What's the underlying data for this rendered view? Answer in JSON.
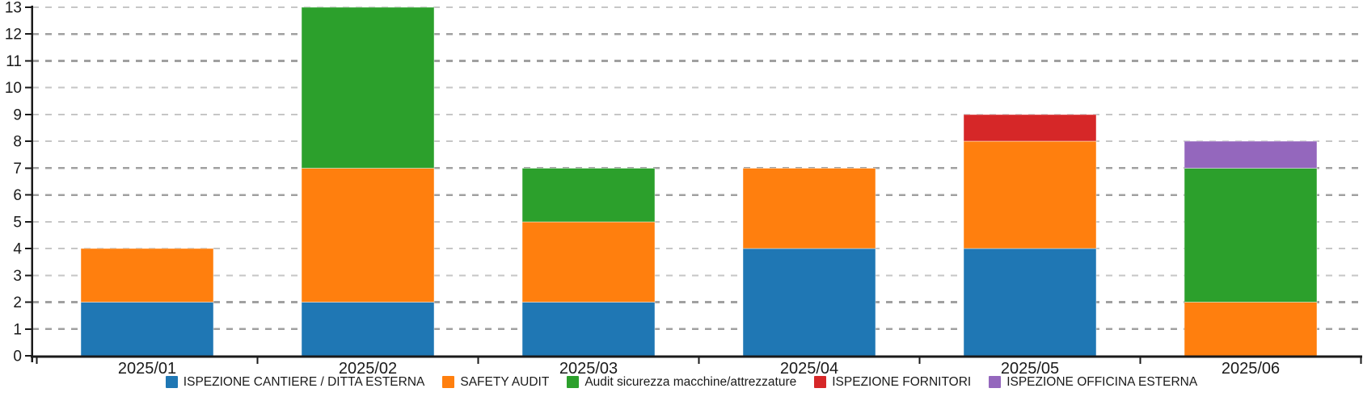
{
  "chart_data": {
    "type": "bar",
    "stacked": true,
    "orientation": "vertical",
    "title": "",
    "xlabel": "",
    "ylabel": "",
    "categories": [
      "2025/01",
      "2025/02",
      "2025/03",
      "2025/04",
      "2025/05",
      "2025/06"
    ],
    "series": [
      {
        "name": "ISPEZIONE CANTIERE / DITTA ESTERNA",
        "color": "#1f77b4",
        "values": [
          2,
          2,
          2,
          4,
          4,
          0
        ]
      },
      {
        "name": "SAFETY AUDIT",
        "color": "#ff7f0e",
        "values": [
          2,
          5,
          3,
          3,
          4,
          2
        ]
      },
      {
        "name": "Audit sicurezza macchine/attrezzature",
        "color": "#2ca02c",
        "values": [
          0,
          6,
          2,
          0,
          0,
          5
        ]
      },
      {
        "name": "ISPEZIONE FORNITORI",
        "color": "#d62728",
        "values": [
          0,
          0,
          0,
          0,
          1,
          0
        ]
      },
      {
        "name": "ISPEZIONE OFFICINA ESTERNA",
        "color": "#9467bd",
        "values": [
          0,
          0,
          0,
          0,
          0,
          1
        ]
      }
    ],
    "totals": [
      4,
      13,
      7,
      7,
      9,
      8
    ],
    "ylim": [
      0,
      13
    ],
    "ytick_step": 1,
    "yticks": [
      0,
      1,
      2,
      3,
      4,
      5,
      6,
      7,
      8,
      9,
      10,
      11,
      12,
      13
    ],
    "grid": "horizontal-dashed",
    "grid_color_light": "#c6c6c6",
    "grid_color_dark": "#a0a0a0",
    "axis_color": "#1a1a1a",
    "legend_position": "bottom"
  }
}
